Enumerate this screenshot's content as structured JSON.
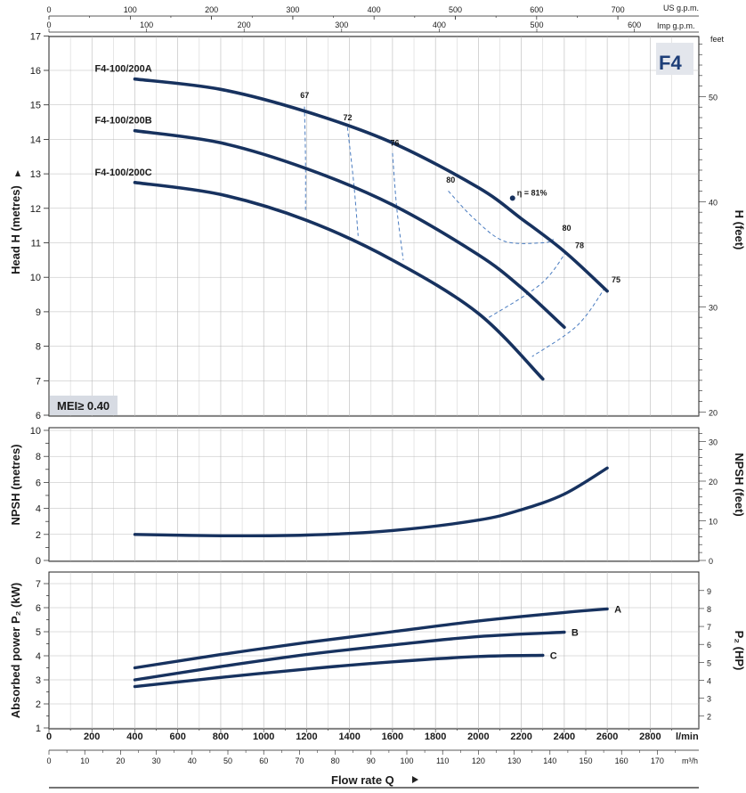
{
  "model_badge": "F4",
  "mei_label": "MEI≥ 0.40",
  "flow_axis_title": "Flow rate  Q",
  "top_axes": {
    "us_gpm_unit": "US g.p.m.",
    "us_gpm_ticks": [
      "0",
      "100",
      "200",
      "300",
      "400",
      "500",
      "600",
      "700"
    ],
    "imp_gpm_unit": "Imp g.p.m.",
    "imp_gpm_ticks": [
      "0",
      "100",
      "200",
      "300",
      "400",
      "500",
      "600"
    ]
  },
  "bottom_axes": {
    "lmin_unit": "l/min",
    "lmin_ticks": [
      "0",
      "200",
      "400",
      "600",
      "800",
      "1000",
      "1200",
      "1400",
      "1600",
      "1800",
      "2000",
      "2200",
      "2400",
      "2600",
      "2800"
    ],
    "m3h_unit": "m³/h",
    "m3h_ticks": [
      "0",
      "10",
      "20",
      "30",
      "40",
      "50",
      "60",
      "70",
      "80",
      "90",
      "100",
      "110",
      "120",
      "130",
      "140",
      "150",
      "160",
      "170"
    ]
  },
  "chart_data": [
    {
      "type": "line",
      "name": "head",
      "ylabel": "Head H  (metres)",
      "ylabel_right": "H (feet)",
      "right_unit": "feet",
      "x_unit": "l/min",
      "xlim": [
        0,
        2900
      ],
      "ylim": [
        6,
        17
      ],
      "y_ticks": [
        "6",
        "7",
        "8",
        "9",
        "10",
        "11",
        "12",
        "13",
        "14",
        "15",
        "16",
        "17"
      ],
      "feet_ticks": [
        "20",
        "30",
        "40",
        "50"
      ],
      "series": [
        {
          "name": "F4-100/200A",
          "x": [
            400,
            800,
            1200,
            1600,
            2000,
            2200,
            2400,
            2600
          ],
          "y": [
            15.75,
            15.45,
            14.8,
            13.9,
            12.6,
            11.7,
            10.75,
            9.6
          ]
        },
        {
          "name": "F4-100/200B",
          "x": [
            400,
            800,
            1200,
            1600,
            2000,
            2200,
            2400
          ],
          "y": [
            14.25,
            13.9,
            13.15,
            12.1,
            10.65,
            9.7,
            8.55
          ]
        },
        {
          "name": "F4-100/200C",
          "x": [
            400,
            800,
            1200,
            1600,
            2000,
            2300
          ],
          "y": [
            12.75,
            12.4,
            11.65,
            10.5,
            8.95,
            7.05
          ]
        }
      ],
      "efficiency_lines": [
        {
          "label": "67",
          "points": [
            [
              1190,
              14.95
            ],
            [
              1195,
              13.4
            ],
            [
              1195,
              11.9
            ]
          ]
        },
        {
          "label": "72",
          "points": [
            [
              1390,
              14.35
            ],
            [
              1420,
              12.7
            ],
            [
              1440,
              11.2
            ]
          ]
        },
        {
          "label": "76",
          "points": [
            [
              1600,
              13.6
            ],
            [
              1620,
              12.0
            ],
            [
              1650,
              10.5
            ]
          ]
        },
        {
          "label": "80",
          "points": [
            [
              1860,
              12.5
            ],
            [
              1980,
              11.7
            ],
            [
              2120,
              11.05
            ],
            [
              2300,
              11.0
            ],
            [
              2350,
              11.1
            ]
          ]
        },
        {
          "label": "78",
          "points": [
            [
              2410,
              10.75
            ],
            [
              2290,
              9.8
            ],
            [
              2040,
              8.8
            ]
          ]
        },
        {
          "label": "75",
          "points": [
            [
              2590,
              9.7
            ],
            [
              2460,
              8.6
            ],
            [
              2250,
              7.7
            ]
          ]
        }
      ],
      "efficiency_labels": [
        {
          "text": "67",
          "x": 1170,
          "y": 15.2
        },
        {
          "text": "72",
          "x": 1370,
          "y": 14.55
        },
        {
          "text": "76",
          "x": 1590,
          "y": 13.82
        },
        {
          "text": "80",
          "x": 1850,
          "y": 12.75
        },
        {
          "text": "80",
          "x": 2390,
          "y": 11.35
        },
        {
          "text": "78",
          "x": 2450,
          "y": 10.85
        },
        {
          "text": "75",
          "x": 2620,
          "y": 9.85
        }
      ],
      "bep": {
        "label": "η = 81%",
        "x": 2130,
        "y": 12.45
      }
    },
    {
      "type": "line",
      "name": "npsh",
      "ylabel": "NPSH (metres)",
      "ylabel_right": "NPSH (feet)",
      "xlim": [
        0,
        2900
      ],
      "ylim": [
        0,
        10
      ],
      "y_ticks": [
        "0",
        "2",
        "4",
        "6",
        "8",
        "10"
      ],
      "feet_ticks": [
        "0",
        "10",
        "20",
        "30"
      ],
      "series": [
        {
          "name": "NPSH",
          "x": [
            400,
            800,
            1200,
            1600,
            2000,
            2200,
            2400,
            2600
          ],
          "y": [
            2.0,
            1.9,
            1.95,
            2.3,
            3.1,
            3.9,
            5.1,
            7.1
          ]
        }
      ]
    },
    {
      "type": "line",
      "name": "power",
      "ylabel": "Absorbed power P₂ (kW)",
      "ylabel_right": "P₂ (HP)",
      "xlim": [
        0,
        2900
      ],
      "ylim": [
        1,
        7
      ],
      "y_ticks": [
        "1",
        "2",
        "3",
        "4",
        "5",
        "6",
        "7"
      ],
      "hp_ticks": [
        "2",
        "3",
        "4",
        "5",
        "6",
        "7",
        "8",
        "9"
      ],
      "series": [
        {
          "name": "A",
          "x": [
            400,
            800,
            1200,
            1600,
            2000,
            2400,
            2600
          ],
          "y": [
            3.5,
            4.05,
            4.55,
            5.0,
            5.45,
            5.8,
            5.95
          ]
        },
        {
          "name": "B",
          "x": [
            400,
            800,
            1200,
            1600,
            2000,
            2400
          ],
          "y": [
            3.0,
            3.55,
            4.05,
            4.45,
            4.8,
            4.98
          ]
        },
        {
          "name": "C",
          "x": [
            400,
            800,
            1200,
            1600,
            2000,
            2300
          ],
          "y": [
            2.72,
            3.1,
            3.45,
            3.75,
            3.97,
            4.02
          ]
        }
      ]
    }
  ],
  "colors": {
    "curve": "#17325f",
    "grid": "#b9b9b9",
    "dashed": "#4a7cc0",
    "badge_bg": "#e3e6ec",
    "model": "#1d3e78"
  }
}
